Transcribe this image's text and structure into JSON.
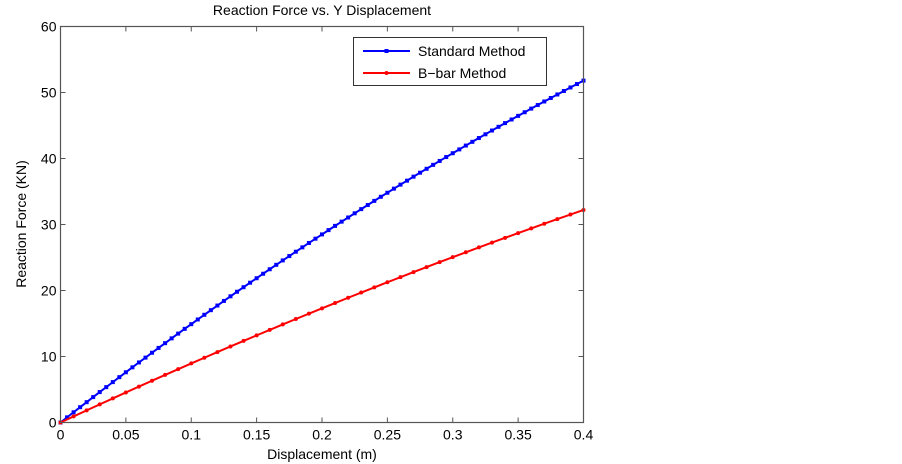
{
  "chart_data": {
    "type": "line",
    "title": "Reaction Force vs. Y Displacement",
    "xlabel": "Displacement (m)",
    "ylabel": "Reaction Force (KN)",
    "xlim": [
      0,
      0.4
    ],
    "ylim": [
      0,
      60
    ],
    "xticks": [
      0,
      0.05,
      0.1,
      0.15,
      0.2,
      0.25,
      0.3,
      0.35,
      0.4
    ],
    "xtick_labels": [
      "0",
      "0.05",
      "0.1",
      "0.15",
      "0.2",
      "0.25",
      "0.3",
      "0.35",
      "0.4"
    ],
    "yticks": [
      0,
      10,
      20,
      30,
      40,
      50,
      60
    ],
    "ytick_labels": [
      "0",
      "10",
      "20",
      "30",
      "40",
      "50",
      "60"
    ],
    "grid": false,
    "legend_position": "top-right",
    "series": [
      {
        "name": "Standard Method",
        "color": "#0000ff",
        "x_start": 0,
        "x_step": 0.005,
        "values": [
          0,
          0.78,
          1.55,
          2.32,
          3.08,
          3.85,
          4.61,
          5.36,
          6.12,
          6.87,
          7.61,
          8.36,
          9.1,
          9.83,
          10.57,
          11.3,
          12.02,
          12.75,
          13.47,
          14.19,
          14.9,
          15.61,
          16.32,
          17.02,
          17.72,
          18.42,
          19.12,
          19.81,
          20.5,
          21.18,
          21.86,
          22.54,
          23.22,
          23.89,
          24.56,
          25.22,
          25.88,
          26.54,
          27.2,
          27.85,
          28.5,
          29.15,
          29.79,
          30.43,
          31.06,
          31.7,
          32.33,
          32.95,
          33.58,
          34.2,
          34.81,
          35.43,
          36.04,
          36.64,
          37.25,
          37.85,
          38.44,
          39.04,
          39.63,
          40.22,
          40.8,
          41.38,
          41.96,
          42.53,
          43.1,
          43.67,
          44.24,
          44.8,
          45.36,
          45.91,
          46.46,
          47.01,
          47.56,
          48.1,
          48.64,
          49.17,
          49.7,
          50.23,
          50.76,
          51.28,
          51.8
        ]
      },
      {
        "name": "B−bar Method",
        "color": "#ff0000",
        "x_start": 0,
        "x_step": 0.01,
        "values": [
          0,
          0.92,
          1.84,
          2.75,
          3.65,
          4.55,
          5.44,
          6.33,
          7.21,
          8.08,
          8.95,
          9.81,
          10.67,
          11.52,
          12.36,
          13.2,
          14.03,
          14.86,
          15.68,
          16.49,
          17.3,
          18.1,
          18.9,
          19.69,
          20.47,
          21.25,
          22.02,
          22.79,
          23.55,
          24.3,
          25.05,
          25.79,
          26.53,
          27.26,
          27.98,
          28.7,
          29.41,
          30.12,
          30.82,
          31.51,
          32.2
        ]
      }
    ]
  }
}
